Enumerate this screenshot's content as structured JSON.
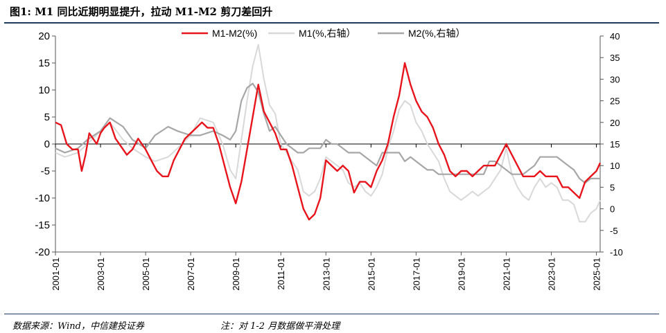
{
  "header": {
    "title": "图1: M1 同比近期明显提升，拉动 M1-M2 剪刀差回升"
  },
  "footer": {
    "source": "数据来源：Wind，中信建投证券",
    "note": "注：对 1-2 月数据做平滑处理"
  },
  "colors": {
    "m1_m2": "#e8141c",
    "m1": "#d8d8d8",
    "m2": "#a6a6a6",
    "axis": "#555555"
  },
  "chart_data": {
    "type": "line",
    "legend_position": "top",
    "grid": false,
    "y_left": {
      "min": -20,
      "max": 20,
      "ticks": [
        20,
        15,
        10,
        5,
        0,
        -5,
        -10,
        -15,
        -20
      ]
    },
    "y_right": {
      "min": -10,
      "max": 40,
      "ticks": [
        40,
        35,
        30,
        25,
        20,
        15,
        10,
        5,
        0,
        -5,
        -10
      ]
    },
    "x_ticks": [
      "2001-01",
      "2003-01",
      "2005-01",
      "2007-01",
      "2009-01",
      "2011-01",
      "2013-01",
      "2015-01",
      "2017-01",
      "2019-01",
      "2021-01",
      "2023-01",
      "2025-01"
    ],
    "x_range": [
      "2001-01",
      "2025-03"
    ],
    "series": [
      {
        "name": "M1-M2(%)",
        "axis": "left",
        "color": "#e8141c",
        "width": 2.4,
        "points": [
          [
            "2001-01",
            4
          ],
          [
            "2001-04",
            3.5
          ],
          [
            "2001-07",
            0
          ],
          [
            "2001-10",
            -1
          ],
          [
            "2002-01",
            -1
          ],
          [
            "2002-03",
            -5
          ],
          [
            "2002-05",
            -2
          ],
          [
            "2002-07",
            2
          ],
          [
            "2002-09",
            1
          ],
          [
            "2002-11",
            0
          ],
          [
            "2003-01",
            2
          ],
          [
            "2003-03",
            3
          ],
          [
            "2003-06",
            4
          ],
          [
            "2003-09",
            1
          ],
          [
            "2003-11",
            0
          ],
          [
            "2004-01",
            -1
          ],
          [
            "2004-03",
            -2
          ],
          [
            "2004-06",
            -1
          ],
          [
            "2004-09",
            1
          ],
          [
            "2004-11",
            0
          ],
          [
            "2005-01",
            -1
          ],
          [
            "2005-04",
            -3
          ],
          [
            "2005-07",
            -5
          ],
          [
            "2005-10",
            -6
          ],
          [
            "2006-01",
            -6
          ],
          [
            "2006-04",
            -3
          ],
          [
            "2006-07",
            -1
          ],
          [
            "2006-10",
            1
          ],
          [
            "2007-01",
            2
          ],
          [
            "2007-04",
            3
          ],
          [
            "2007-07",
            4
          ],
          [
            "2007-10",
            3
          ],
          [
            "2008-01",
            3
          ],
          [
            "2008-04",
            0
          ],
          [
            "2008-07",
            -4
          ],
          [
            "2008-10",
            -8
          ],
          [
            "2009-01",
            -11
          ],
          [
            "2009-04",
            -7
          ],
          [
            "2009-07",
            -1
          ],
          [
            "2009-10",
            5
          ],
          [
            "2010-01",
            11
          ],
          [
            "2010-04",
            6
          ],
          [
            "2010-07",
            4
          ],
          [
            "2010-10",
            2
          ],
          [
            "2011-01",
            -1
          ],
          [
            "2011-04",
            -1
          ],
          [
            "2011-07",
            -4
          ],
          [
            "2011-10",
            -8
          ],
          [
            "2012-01",
            -12
          ],
          [
            "2012-04",
            -14
          ],
          [
            "2012-07",
            -13
          ],
          [
            "2012-10",
            -10
          ],
          [
            "2013-01",
            -3
          ],
          [
            "2013-04",
            -4
          ],
          [
            "2013-07",
            -5
          ],
          [
            "2013-10",
            -4
          ],
          [
            "2014-01",
            -5
          ],
          [
            "2014-04",
            -9
          ],
          [
            "2014-07",
            -7
          ],
          [
            "2014-10",
            -7
          ],
          [
            "2015-01",
            -8
          ],
          [
            "2015-04",
            -5
          ],
          [
            "2015-07",
            -3
          ],
          [
            "2015-10",
            0
          ],
          [
            "2016-01",
            5
          ],
          [
            "2016-04",
            9
          ],
          [
            "2016-07",
            15
          ],
          [
            "2016-10",
            11
          ],
          [
            "2017-01",
            8
          ],
          [
            "2017-04",
            6
          ],
          [
            "2017-07",
            5
          ],
          [
            "2017-10",
            3
          ],
          [
            "2018-01",
            0
          ],
          [
            "2018-04",
            -2
          ],
          [
            "2018-07",
            -5
          ],
          [
            "2018-10",
            -6
          ],
          [
            "2019-01",
            -5
          ],
          [
            "2019-04",
            -5
          ],
          [
            "2019-07",
            -6
          ],
          [
            "2019-10",
            -5
          ],
          [
            "2020-01",
            -4
          ],
          [
            "2020-04",
            -4
          ],
          [
            "2020-07",
            -4
          ],
          [
            "2020-10",
            -2
          ],
          [
            "2021-01",
            0
          ],
          [
            "2021-04",
            -2
          ],
          [
            "2021-07",
            -4
          ],
          [
            "2021-10",
            -6
          ],
          [
            "2022-01",
            -6
          ],
          [
            "2022-04",
            -6
          ],
          [
            "2022-07",
            -5
          ],
          [
            "2022-10",
            -6
          ],
          [
            "2023-01",
            -6
          ],
          [
            "2023-04",
            -6
          ],
          [
            "2023-07",
            -8
          ],
          [
            "2023-10",
            -8
          ],
          [
            "2024-01",
            -9
          ],
          [
            "2024-04",
            -10
          ],
          [
            "2024-07",
            -7
          ],
          [
            "2024-10",
            -6
          ],
          [
            "2025-01",
            -5
          ],
          [
            "2025-03",
            -3.5
          ]
        ]
      },
      {
        "name": "M1(%,右轴）",
        "axis": "right",
        "color": "#d8d8d8",
        "width": 2,
        "points": [
          [
            "2001-01",
            13
          ],
          [
            "2001-06",
            12
          ],
          [
            "2002-01",
            13
          ],
          [
            "2002-06",
            15
          ],
          [
            "2003-01",
            18
          ],
          [
            "2003-06",
            20
          ],
          [
            "2004-01",
            16
          ],
          [
            "2004-06",
            14
          ],
          [
            "2005-01",
            12
          ],
          [
            "2005-06",
            11
          ],
          [
            "2006-01",
            12
          ],
          [
            "2006-06",
            14
          ],
          [
            "2007-01",
            17
          ],
          [
            "2007-06",
            21
          ],
          [
            "2008-01",
            20
          ],
          [
            "2008-06",
            15
          ],
          [
            "2008-10",
            9
          ],
          [
            "2009-01",
            7
          ],
          [
            "2009-04",
            16
          ],
          [
            "2009-07",
            25
          ],
          [
            "2009-10",
            33
          ],
          [
            "2010-01",
            38
          ],
          [
            "2010-04",
            30
          ],
          [
            "2010-07",
            24
          ],
          [
            "2010-10",
            22
          ],
          [
            "2011-01",
            15
          ],
          [
            "2011-04",
            13
          ],
          [
            "2011-07",
            11
          ],
          [
            "2011-10",
            9
          ],
          [
            "2012-01",
            4
          ],
          [
            "2012-04",
            3
          ],
          [
            "2012-07",
            4
          ],
          [
            "2012-10",
            7
          ],
          [
            "2013-01",
            12
          ],
          [
            "2013-04",
            11
          ],
          [
            "2013-07",
            10
          ],
          [
            "2013-10",
            9
          ],
          [
            "2014-01",
            6
          ],
          [
            "2014-04",
            5
          ],
          [
            "2014-07",
            6
          ],
          [
            "2014-10",
            4
          ],
          [
            "2015-01",
            3
          ],
          [
            "2015-04",
            5
          ],
          [
            "2015-07",
            8
          ],
          [
            "2015-10",
            14
          ],
          [
            "2016-01",
            18
          ],
          [
            "2016-04",
            23
          ],
          [
            "2016-07",
            25
          ],
          [
            "2016-10",
            24
          ],
          [
            "2017-01",
            20
          ],
          [
            "2017-04",
            18
          ],
          [
            "2017-07",
            15
          ],
          [
            "2017-10",
            13
          ],
          [
            "2018-01",
            11
          ],
          [
            "2018-04",
            7
          ],
          [
            "2018-07",
            4
          ],
          [
            "2018-10",
            3
          ],
          [
            "2019-01",
            2
          ],
          [
            "2019-04",
            3
          ],
          [
            "2019-07",
            4
          ],
          [
            "2019-10",
            3
          ],
          [
            "2020-01",
            4
          ],
          [
            "2020-04",
            5
          ],
          [
            "2020-07",
            7
          ],
          [
            "2020-10",
            9
          ],
          [
            "2021-01",
            14
          ],
          [
            "2021-04",
            8
          ],
          [
            "2021-07",
            5
          ],
          [
            "2021-10",
            3
          ],
          [
            "2022-01",
            2
          ],
          [
            "2022-04",
            5
          ],
          [
            "2022-07",
            7
          ],
          [
            "2022-10",
            5
          ],
          [
            "2023-01",
            6
          ],
          [
            "2023-04",
            5
          ],
          [
            "2023-07",
            2
          ],
          [
            "2023-10",
            2
          ],
          [
            "2024-01",
            1
          ],
          [
            "2024-04",
            -3
          ],
          [
            "2024-07",
            -3
          ],
          [
            "2024-10",
            -1
          ],
          [
            "2025-01",
            0
          ],
          [
            "2025-03",
            2
          ]
        ]
      },
      {
        "name": "M2(%,右轴）",
        "axis": "right",
        "color": "#a6a6a6",
        "width": 2.2,
        "points": [
          [
            "2001-01",
            14
          ],
          [
            "2001-06",
            13
          ],
          [
            "2002-01",
            14
          ],
          [
            "2002-06",
            16
          ],
          [
            "2003-01",
            18
          ],
          [
            "2003-06",
            21
          ],
          [
            "2004-01",
            19
          ],
          [
            "2004-06",
            16
          ],
          [
            "2005-01",
            14
          ],
          [
            "2005-06",
            17
          ],
          [
            "2006-01",
            19
          ],
          [
            "2006-06",
            18
          ],
          [
            "2007-01",
            17
          ],
          [
            "2007-06",
            17
          ],
          [
            "2008-01",
            18
          ],
          [
            "2008-06",
            17
          ],
          [
            "2008-10",
            16
          ],
          [
            "2009-01",
            18
          ],
          [
            "2009-04",
            25
          ],
          [
            "2009-07",
            28
          ],
          [
            "2009-10",
            29
          ],
          [
            "2010-01",
            27
          ],
          [
            "2010-04",
            22
          ],
          [
            "2010-07",
            18
          ],
          [
            "2010-10",
            19
          ],
          [
            "2011-01",
            17
          ],
          [
            "2011-04",
            15
          ],
          [
            "2011-07",
            14
          ],
          [
            "2011-10",
            13
          ],
          [
            "2012-01",
            13
          ],
          [
            "2012-04",
            14
          ],
          [
            "2012-07",
            14
          ],
          [
            "2012-10",
            14
          ],
          [
            "2013-01",
            16
          ],
          [
            "2013-04",
            15
          ],
          [
            "2013-07",
            15
          ],
          [
            "2013-10",
            14
          ],
          [
            "2014-01",
            13
          ],
          [
            "2014-04",
            13
          ],
          [
            "2014-07",
            13
          ],
          [
            "2014-10",
            12
          ],
          [
            "2015-01",
            11
          ],
          [
            "2015-04",
            10
          ],
          [
            "2015-07",
            13
          ],
          [
            "2015-10",
            13
          ],
          [
            "2016-01",
            13
          ],
          [
            "2016-04",
            13
          ],
          [
            "2016-07",
            11
          ],
          [
            "2016-10",
            12
          ],
          [
            "2017-01",
            11
          ],
          [
            "2017-04",
            10
          ],
          [
            "2017-07",
            9
          ],
          [
            "2017-10",
            9
          ],
          [
            "2018-01",
            8
          ],
          [
            "2018-04",
            8
          ],
          [
            "2018-07",
            8
          ],
          [
            "2018-10",
            8
          ],
          [
            "2019-01",
            8
          ],
          [
            "2019-04",
            8
          ],
          [
            "2019-07",
            8
          ],
          [
            "2019-10",
            8
          ],
          [
            "2020-01",
            8
          ],
          [
            "2020-04",
            11
          ],
          [
            "2020-07",
            11
          ],
          [
            "2020-10",
            10
          ],
          [
            "2021-01",
            9
          ],
          [
            "2021-04",
            8
          ],
          [
            "2021-07",
            8
          ],
          [
            "2021-10",
            8
          ],
          [
            "2022-01",
            9
          ],
          [
            "2022-04",
            10
          ],
          [
            "2022-07",
            12
          ],
          [
            "2022-10",
            12
          ],
          [
            "2023-01",
            12
          ],
          [
            "2023-04",
            12
          ],
          [
            "2023-07",
            11
          ],
          [
            "2023-10",
            10
          ],
          [
            "2024-01",
            9
          ],
          [
            "2024-04",
            7
          ],
          [
            "2024-07",
            6
          ],
          [
            "2024-10",
            7
          ],
          [
            "2025-01",
            7
          ],
          [
            "2025-03",
            7
          ]
        ]
      }
    ]
  }
}
